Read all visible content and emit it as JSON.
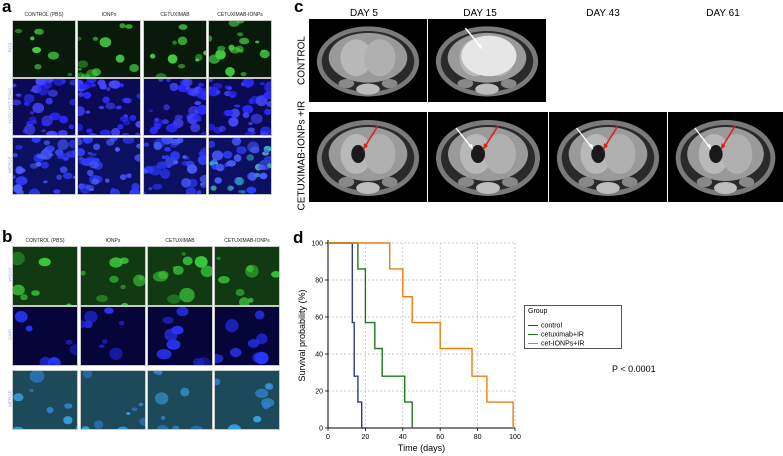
{
  "panel_a": {
    "letter": "a",
    "columns": [
      "CONTROL (PBS)",
      "IONPs",
      "CETUXIMAB",
      "CETUXIMAB-IONPs"
    ],
    "rows": [
      "ROS",
      "HOECHST 33342",
      "MERGE"
    ]
  },
  "panel_b": {
    "letter": "b",
    "columns": [
      "CONTROL (PBS)",
      "IONPs",
      "CETUXIMAB",
      "CETUXIMAB-IONPs"
    ],
    "rows": [
      "γH2AX",
      "DAPI",
      "MERGE"
    ]
  },
  "panel_c": {
    "letter": "c",
    "days": [
      "DAY 5",
      "DAY 15",
      "DAY 43",
      "DAY 61"
    ],
    "rows": [
      "CONTROL",
      "CETUXIMAB-IONPs +IR"
    ]
  },
  "panel_d": {
    "letter": "d",
    "pvalue": "P < 0.0001",
    "legend_title": "Group"
  },
  "colors": {
    "ros_green": "#3fbf3f",
    "nuclear_blue": "#2020ff",
    "control_line": "#2b3a8f",
    "cetuximab_line": "#1f7a1f",
    "combo_line": "#f07a10",
    "red_arrow": "#e02020"
  },
  "chart_data": {
    "type": "line",
    "title": "",
    "xlabel": "Time (days)",
    "ylabel": "Survival probability (%)",
    "xlim": [
      0,
      100
    ],
    "ylim": [
      0,
      100
    ],
    "xticks": [
      0,
      20,
      40,
      60,
      80,
      100
    ],
    "yticks": [
      0,
      20,
      40,
      60,
      80,
      100
    ],
    "grid": true,
    "legend_position": "right",
    "step": true,
    "series": [
      {
        "name": "control",
        "x": [
          0,
          13,
          13,
          14,
          14,
          16,
          16,
          18,
          18,
          20
        ],
        "y": [
          100,
          100,
          57,
          57,
          28,
          28,
          14,
          14,
          0,
          0
        ]
      },
      {
        "name": "cetuximab+IR",
        "x": [
          0,
          16,
          16,
          20,
          20,
          25,
          25,
          29,
          29,
          41,
          41,
          45,
          45
        ],
        "y": [
          100,
          100,
          86,
          86,
          57,
          57,
          43,
          43,
          28,
          28,
          14,
          14,
          0
        ]
      },
      {
        "name": "cet-IONPs+IR",
        "x": [
          0,
          33,
          33,
          40,
          40,
          45,
          45,
          60,
          60,
          77,
          77,
          85,
          85,
          99,
          99
        ],
        "y": [
          100,
          100,
          86,
          86,
          71,
          71,
          57,
          57,
          43,
          43,
          28,
          28,
          14,
          14,
          0
        ]
      }
    ]
  }
}
